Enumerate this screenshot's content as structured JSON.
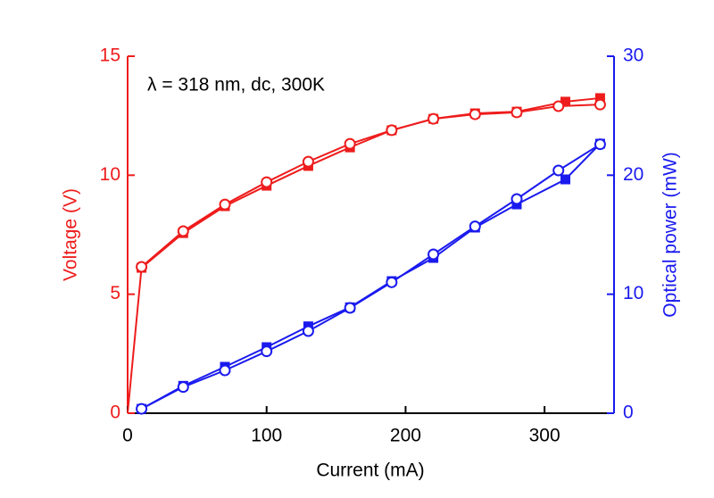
{
  "chart_data": {
    "type": "line",
    "annotation": "λ = 318 nm, dc, 300K",
    "x_label": "Current (mA)",
    "y_label": "Voltage (V)",
    "y2_label": "Optical power (mW)",
    "y_color": "#ee1c1c",
    "y2_color": "#1a1aee",
    "xlim": [
      0,
      350
    ],
    "xticks": [
      0,
      100,
      200,
      300
    ],
    "ylim": [
      0,
      15
    ],
    "yticks": [
      0,
      5,
      10,
      15
    ],
    "y2lim": [
      0,
      30
    ],
    "y2ticks": [
      0,
      10,
      20,
      30
    ],
    "series": [
      {
        "color": "#ee1c1c",
        "marker": "square",
        "axis": "y",
        "x": [
          0,
          10,
          40,
          70,
          100,
          130,
          160,
          190,
          220,
          250,
          280,
          315,
          340
        ],
        "values": [
          0,
          6.11,
          7.57,
          8.7,
          9.56,
          10.39,
          11.17,
          11.89,
          12.37,
          12.6,
          12.67,
          13.09,
          13.24
        ]
      },
      {
        "color": "#ee1c1c",
        "marker": "circle-open",
        "axis": "y",
        "x": [
          10,
          40,
          70,
          100,
          130,
          160,
          190,
          220,
          250,
          280,
          310,
          340
        ],
        "values": [
          6.15,
          7.65,
          8.77,
          9.71,
          10.57,
          11.32,
          11.89,
          12.37,
          12.56,
          12.64,
          12.9,
          12.97
        ]
      },
      {
        "color": "#1a1aee",
        "marker": "square",
        "axis": "y2",
        "x": [
          10,
          40,
          70,
          100,
          130,
          160,
          190,
          220,
          250,
          280,
          315,
          340
        ],
        "values": [
          0.37,
          2.3,
          3.9,
          5.55,
          7.3,
          8.9,
          11.1,
          13.05,
          15.6,
          17.55,
          19.65,
          22.65
        ]
      },
      {
        "color": "#1a1aee",
        "marker": "circle-open",
        "axis": "y2",
        "x": [
          10,
          40,
          70,
          100,
          130,
          160,
          190,
          220,
          250,
          280,
          310,
          340
        ],
        "values": [
          0.37,
          2.2,
          3.6,
          5.2,
          6.9,
          8.85,
          11.0,
          13.35,
          15.7,
          18.0,
          20.4,
          22.6
        ]
      }
    ]
  }
}
